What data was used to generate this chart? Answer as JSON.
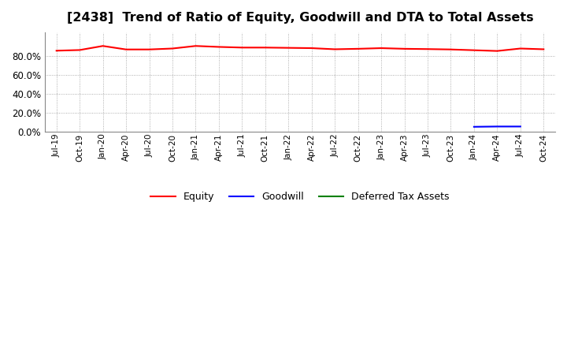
{
  "title": "[2438]  Trend of Ratio of Equity, Goodwill and DTA to Total Assets",
  "title_fontsize": 11.5,
  "background_color": "#ffffff",
  "plot_background_color": "#ffffff",
  "grid_color": "#aaaaaa",
  "xlabels": [
    "Jul-19",
    "Oct-19",
    "Jan-20",
    "Apr-20",
    "Jul-20",
    "Oct-20",
    "Jan-21",
    "Apr-21",
    "Jul-21",
    "Oct-21",
    "Jan-22",
    "Apr-22",
    "Jul-22",
    "Oct-22",
    "Jan-23",
    "Apr-23",
    "Jul-23",
    "Oct-23",
    "Jan-24",
    "Apr-24",
    "Jul-24",
    "Oct-24"
  ],
  "equity": [
    0.855,
    0.862,
    0.905,
    0.868,
    0.868,
    0.878,
    0.905,
    0.895,
    0.888,
    0.888,
    0.885,
    0.882,
    0.87,
    0.875,
    0.882,
    0.875,
    0.872,
    0.868,
    0.86,
    0.852,
    0.878,
    0.87
  ],
  "goodwill": [
    null,
    null,
    null,
    null,
    null,
    null,
    null,
    null,
    null,
    null,
    null,
    null,
    null,
    null,
    null,
    null,
    null,
    null,
    0.05,
    0.053,
    0.053,
    null
  ],
  "dta": [
    null,
    null,
    null,
    null,
    null,
    null,
    null,
    null,
    null,
    null,
    null,
    null,
    null,
    null,
    null,
    null,
    null,
    null,
    null,
    null,
    null,
    null
  ],
  "equity_color": "#ff0000",
  "goodwill_color": "#0000ff",
  "dta_color": "#008000",
  "ylim": [
    0.0,
    1.05
  ],
  "yticks": [
    0.0,
    0.2,
    0.4,
    0.6,
    0.8
  ],
  "legend_labels": [
    "Equity",
    "Goodwill",
    "Deferred Tax Assets"
  ]
}
